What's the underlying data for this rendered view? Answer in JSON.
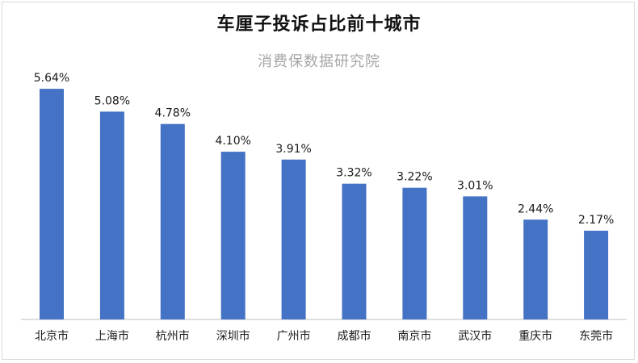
{
  "chart_data": {
    "type": "bar",
    "title": "车厘子投诉占比前十城市",
    "watermark": "消费保数据研究院",
    "categories": [
      "北京市",
      "上海市",
      "杭州市",
      "深圳市",
      "广州市",
      "成都市",
      "南京市",
      "武汉市",
      "重庆市",
      "东莞市"
    ],
    "values": [
      5.64,
      5.08,
      4.78,
      4.1,
      3.91,
      3.32,
      3.22,
      3.01,
      2.44,
      2.17
    ],
    "value_labels": [
      "5.64%",
      "5.08%",
      "4.78%",
      "4.10%",
      "3.91%",
      "3.32%",
      "3.22%",
      "3.01%",
      "2.44%",
      "2.17%"
    ],
    "ylim": [
      0,
      6
    ],
    "grid": false,
    "legend": "none",
    "colors": {
      "bar": "#4472c4"
    }
  }
}
